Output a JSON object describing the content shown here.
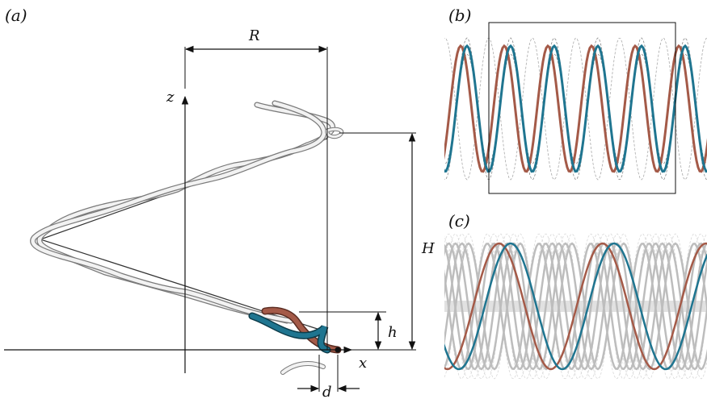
{
  "panels": {
    "a": {
      "label": "(a)"
    },
    "b": {
      "label": "(b)"
    },
    "c": {
      "label": "(c)"
    }
  },
  "symbols": {
    "radius": "R",
    "pitch": "H",
    "strand_pitch": "h",
    "strand_offset": "d",
    "axis_x": "x",
    "axis_z": "z"
  },
  "colors": {
    "strand_blue": "#1f7590",
    "strand_brown": "#a45a48",
    "strand_white": "#e6e6e6",
    "strand_white_edge": "#7a7a7a",
    "strand_gray": "#bdbdbd",
    "line": "#111111"
  }
}
